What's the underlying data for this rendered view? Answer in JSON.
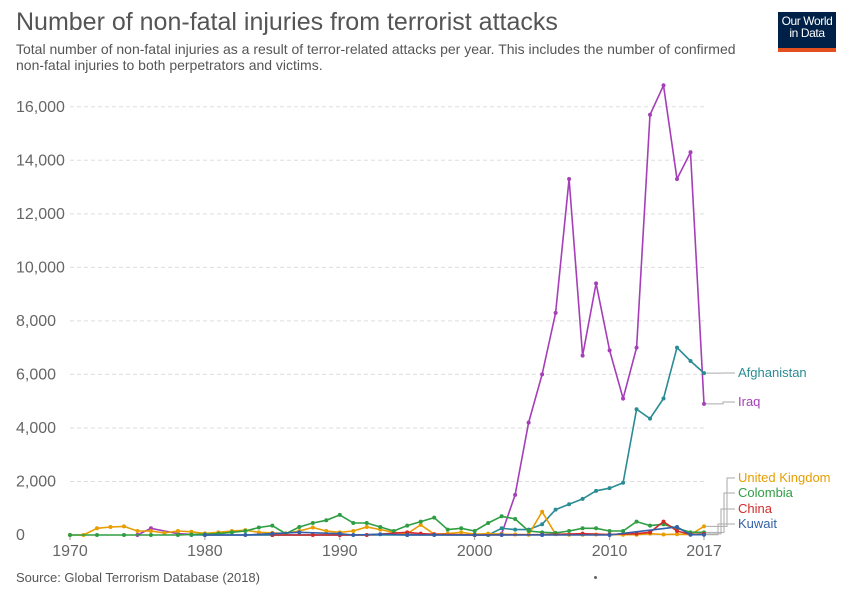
{
  "header": {
    "title": "Number of non-fatal injuries from terrorist attacks",
    "subtitle": "Total number of non-fatal injuries as a result of terror-related attacks per year. This includes the number of confirmed non-fatal injuries to both perpetrators and victims."
  },
  "logo": {
    "line1": "Our World",
    "line2": "in Data",
    "bg": "#002147",
    "accent": "#e3501e"
  },
  "footer": {
    "source": "Source: Global Terrorism Database (2018)"
  },
  "chart_data": {
    "type": "line",
    "title": "Number of non-fatal injuries from terrorist attacks",
    "xlim": [
      1970,
      2017
    ],
    "ylim": [
      0,
      17000
    ],
    "grid": true,
    "yticks": [
      {
        "value": 0,
        "label": "0"
      },
      {
        "value": 2000,
        "label": "2,000"
      },
      {
        "value": 4000,
        "label": "4,000"
      },
      {
        "value": 6000,
        "label": "6,000"
      },
      {
        "value": 8000,
        "label": "8,000"
      },
      {
        "value": 10000,
        "label": "10,000"
      },
      {
        "value": 12000,
        "label": "12,000"
      },
      {
        "value": 14000,
        "label": "14,000"
      },
      {
        "value": 16000,
        "label": "16,000"
      }
    ],
    "xticks": [
      {
        "value": 1970,
        "label": "1970"
      },
      {
        "value": 1980,
        "label": "1980"
      },
      {
        "value": 1990,
        "label": "1990"
      },
      {
        "value": 2000,
        "label": "2000"
      },
      {
        "value": 2010,
        "label": "2010"
      },
      {
        "value": 2017,
        "label": "2017"
      }
    ],
    "series": [
      {
        "name": "Iraq",
        "color": "#a53eb8",
        "points": [
          [
            1975,
            0
          ],
          [
            1976,
            250
          ],
          [
            1978,
            50
          ],
          [
            1980,
            0
          ],
          [
            1985,
            0
          ],
          [
            1990,
            0
          ],
          [
            1995,
            20
          ],
          [
            2000,
            0
          ],
          [
            2001,
            0
          ],
          [
            2002,
            50
          ],
          [
            2003,
            1500
          ],
          [
            2004,
            4200
          ],
          [
            2005,
            6000
          ],
          [
            2006,
            8300
          ],
          [
            2007,
            13300
          ],
          [
            2008,
            6700
          ],
          [
            2009,
            9400
          ],
          [
            2010,
            6900
          ],
          [
            2011,
            5100
          ],
          [
            2012,
            7000
          ],
          [
            2013,
            15700
          ],
          [
            2014,
            16800
          ],
          [
            2015,
            13300
          ],
          [
            2016,
            14300
          ],
          [
            2017,
            4900
          ]
        ]
      },
      {
        "name": "Afghanistan",
        "color": "#2a8c94",
        "points": [
          [
            1979,
            0
          ],
          [
            1985,
            0
          ],
          [
            1990,
            0
          ],
          [
            1995,
            0
          ],
          [
            2000,
            0
          ],
          [
            2001,
            0
          ],
          [
            2002,
            250
          ],
          [
            2003,
            200
          ],
          [
            2004,
            200
          ],
          [
            2005,
            400
          ],
          [
            2006,
            950
          ],
          [
            2007,
            1150
          ],
          [
            2008,
            1350
          ],
          [
            2009,
            1650
          ],
          [
            2010,
            1750
          ],
          [
            2011,
            1950
          ],
          [
            2012,
            4700
          ],
          [
            2013,
            4350
          ],
          [
            2014,
            5100
          ],
          [
            2015,
            7000
          ],
          [
            2016,
            6500
          ],
          [
            2017,
            6050
          ]
        ]
      },
      {
        "name": "United Kingdom",
        "color": "#e89d00",
        "points": [
          [
            1970,
            0
          ],
          [
            1971,
            0
          ],
          [
            1972,
            250
          ],
          [
            1973,
            300
          ],
          [
            1974,
            320
          ],
          [
            1975,
            150
          ],
          [
            1976,
            150
          ],
          [
            1977,
            80
          ],
          [
            1978,
            150
          ],
          [
            1979,
            120
          ],
          [
            1980,
            60
          ],
          [
            1981,
            100
          ],
          [
            1982,
            150
          ],
          [
            1983,
            180
          ],
          [
            1984,
            100
          ],
          [
            1985,
            80
          ],
          [
            1986,
            60
          ],
          [
            1987,
            150
          ],
          [
            1988,
            280
          ],
          [
            1989,
            150
          ],
          [
            1990,
            100
          ],
          [
            1991,
            150
          ],
          [
            1992,
            300
          ],
          [
            1993,
            200
          ],
          [
            1994,
            100
          ],
          [
            1995,
            50
          ],
          [
            1996,
            380
          ],
          [
            1997,
            30
          ],
          [
            1998,
            50
          ],
          [
            1999,
            100
          ],
          [
            2000,
            30
          ],
          [
            2001,
            50
          ],
          [
            2002,
            30
          ],
          [
            2003,
            20
          ],
          [
            2004,
            10
          ],
          [
            2005,
            870
          ],
          [
            2006,
            30
          ],
          [
            2007,
            10
          ],
          [
            2008,
            10
          ],
          [
            2009,
            20
          ],
          [
            2010,
            10
          ],
          [
            2011,
            10
          ],
          [
            2012,
            10
          ],
          [
            2013,
            50
          ],
          [
            2014,
            20
          ],
          [
            2015,
            30
          ],
          [
            2016,
            20
          ],
          [
            2017,
            320
          ]
        ]
      },
      {
        "name": "Colombia",
        "color": "#2e9e43",
        "points": [
          [
            1970,
            0
          ],
          [
            1972,
            0
          ],
          [
            1974,
            0
          ],
          [
            1976,
            0
          ],
          [
            1978,
            0
          ],
          [
            1979,
            20
          ],
          [
            1980,
            30
          ],
          [
            1981,
            50
          ],
          [
            1982,
            100
          ],
          [
            1983,
            150
          ],
          [
            1984,
            280
          ],
          [
            1985,
            350
          ],
          [
            1986,
            50
          ],
          [
            1987,
            300
          ],
          [
            1988,
            450
          ],
          [
            1989,
            550
          ],
          [
            1990,
            750
          ],
          [
            1991,
            450
          ],
          [
            1992,
            450
          ],
          [
            1993,
            300
          ],
          [
            1994,
            150
          ],
          [
            1995,
            350
          ],
          [
            1996,
            500
          ],
          [
            1997,
            650
          ],
          [
            1998,
            200
          ],
          [
            1999,
            250
          ],
          [
            2000,
            150
          ],
          [
            2001,
            450
          ],
          [
            2002,
            700
          ],
          [
            2003,
            600
          ],
          [
            2004,
            150
          ],
          [
            2005,
            100
          ],
          [
            2006,
            80
          ],
          [
            2007,
            150
          ],
          [
            2008,
            250
          ],
          [
            2009,
            250
          ],
          [
            2010,
            150
          ],
          [
            2011,
            150
          ],
          [
            2012,
            500
          ],
          [
            2013,
            350
          ],
          [
            2014,
            400
          ],
          [
            2015,
            250
          ],
          [
            2016,
            100
          ],
          [
            2017,
            100
          ]
        ]
      },
      {
        "name": "China",
        "color": "#d42b2b",
        "points": [
          [
            1985,
            0
          ],
          [
            1988,
            0
          ],
          [
            1990,
            0
          ],
          [
            1992,
            0
          ],
          [
            1995,
            100
          ],
          [
            1996,
            50
          ],
          [
            1997,
            30
          ],
          [
            2000,
            0
          ],
          [
            2005,
            10
          ],
          [
            2008,
            50
          ],
          [
            2010,
            20
          ],
          [
            2012,
            50
          ],
          [
            2013,
            100
          ],
          [
            2014,
            500
          ],
          [
            2015,
            150
          ],
          [
            2016,
            20
          ],
          [
            2017,
            40
          ]
        ]
      },
      {
        "name": "Kuwait",
        "color": "#3360a9",
        "points": [
          [
            1980,
            0
          ],
          [
            1983,
            0
          ],
          [
            1985,
            50
          ],
          [
            1987,
            100
          ],
          [
            1990,
            50
          ],
          [
            1991,
            0
          ],
          [
            1993,
            30
          ],
          [
            1995,
            0
          ],
          [
            1997,
            0
          ],
          [
            2000,
            0
          ],
          [
            2002,
            0
          ],
          [
            2005,
            0
          ],
          [
            2010,
            0
          ],
          [
            2015,
            300
          ],
          [
            2016,
            10
          ],
          [
            2017,
            10
          ]
        ]
      }
    ],
    "labels": [
      {
        "series": "Afghanistan",
        "text": "Afghanistan"
      },
      {
        "series": "Iraq",
        "text": "Iraq"
      },
      {
        "series": "United Kingdom",
        "text": "United Kingdom"
      },
      {
        "series": "Colombia",
        "text": "Colombia"
      },
      {
        "series": "China",
        "text": "China"
      },
      {
        "series": "Kuwait",
        "text": "Kuwait"
      }
    ]
  }
}
